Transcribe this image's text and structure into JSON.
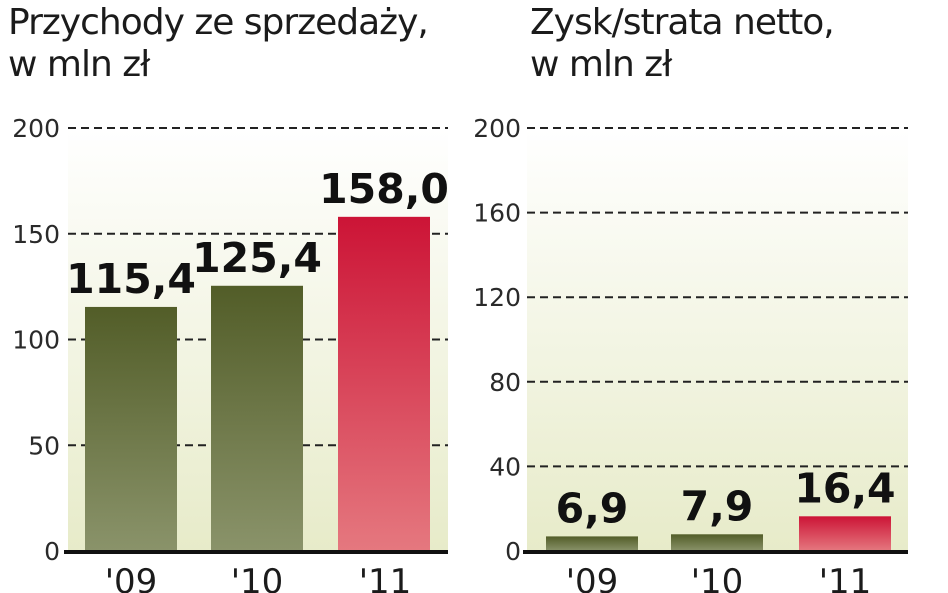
{
  "chart_data": [
    {
      "type": "bar",
      "title": "Przychody ze sprzedaży,",
      "subtitle": "w mln zł",
      "categories": [
        "'09",
        "'10",
        "'11"
      ],
      "values": [
        115.4,
        125.4,
        158.0
      ],
      "value_labels": [
        "115,4",
        "125,4",
        "158,0"
      ],
      "yticks": [
        0,
        50,
        100,
        150,
        200
      ],
      "ylim": [
        0,
        200
      ],
      "grid": true,
      "colors": [
        "#5a6630",
        "#5a6630",
        "#d01a3a"
      ]
    },
    {
      "type": "bar",
      "title": "Zysk/strata netto,",
      "subtitle": "w mln zł",
      "categories": [
        "'09",
        "'10",
        "'11"
      ],
      "values": [
        6.9,
        7.9,
        16.4
      ],
      "value_labels": [
        "6,9",
        "7,9",
        "16,4"
      ],
      "yticks": [
        0,
        40,
        80,
        120,
        160,
        200
      ],
      "ylim": [
        0,
        200
      ],
      "grid": true,
      "colors": [
        "#5a6630",
        "#5a6630",
        "#d01a3a"
      ]
    }
  ]
}
